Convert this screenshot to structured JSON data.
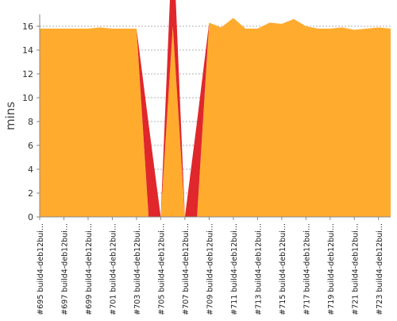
{
  "chart_data": {
    "type": "area",
    "ylabel": "mins",
    "xlabel": "",
    "ylim": [
      0,
      17
    ],
    "yticks": [
      0,
      2,
      4,
      6,
      8,
      10,
      12,
      14,
      16
    ],
    "grid": true,
    "x_tick_labels": [
      "#695 build4-deb12bui...",
      "#697 build4-deb12bui...",
      "#699 build4-deb12bui...",
      "#701 build4-deb12bui...",
      "#703 build4-deb12bui...",
      "#705 build4-deb12bui...",
      "#707 build4-deb12bui...",
      "#709 build4-deb12bui...",
      "#711 build4-deb12bui...",
      "#713 build4-deb12bui...",
      "#715 build4-deb12bui...",
      "#717 build4-deb12bui...",
      "#719 build4-deb12bui...",
      "#721 build4-deb12bui...",
      "#723 build4-deb12bui..."
    ],
    "x": [
      695,
      696,
      697,
      698,
      699,
      700,
      701,
      702,
      703,
      704,
      705,
      706,
      707,
      708,
      709,
      710,
      711,
      712,
      713,
      714,
      715,
      716,
      717,
      718,
      719,
      720,
      721,
      722,
      723,
      724
    ],
    "series": [
      {
        "status": "success",
        "color": "#ffab2e",
        "values": [
          15.8,
          15.8,
          15.8,
          15.8,
          15.8,
          15.9,
          15.8,
          15.8,
          15.8,
          0,
          0,
          16.0,
          0,
          0,
          16.3,
          15.9,
          16.7,
          15.8,
          15.8,
          16.3,
          16.2,
          16.6,
          16.0,
          15.8,
          15.8,
          15.9,
          15.7,
          15.8,
          15.9,
          15.8
        ]
      },
      {
        "status": "failed",
        "color": "#e0272b",
        "values": [
          0,
          0,
          0,
          0,
          0,
          0,
          0,
          0,
          0,
          7.8,
          0,
          8.0,
          0,
          8.0,
          0,
          0,
          0,
          0,
          0,
          0,
          0,
          0,
          0,
          0,
          0,
          0,
          0,
          0,
          0,
          0
        ]
      }
    ]
  }
}
